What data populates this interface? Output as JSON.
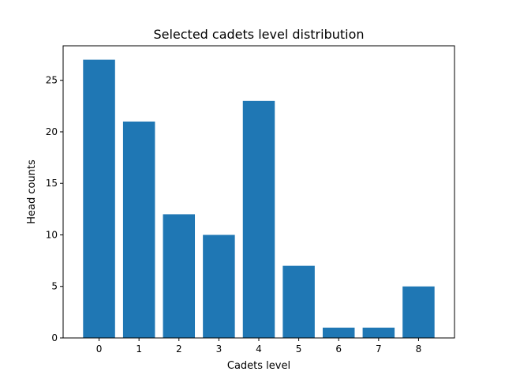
{
  "chart_data": {
    "type": "bar",
    "title": "Selected cadets level distribution",
    "xlabel": "Cadets level",
    "ylabel": "Head counts",
    "categories": [
      "0",
      "1",
      "2",
      "3",
      "4",
      "5",
      "6",
      "7",
      "8"
    ],
    "values": [
      27,
      21,
      12,
      10,
      23,
      7,
      1,
      1,
      5
    ],
    "xlim": [
      -0.9,
      8.9
    ],
    "ylim": [
      0,
      28.35
    ],
    "yticks": [
      0,
      5,
      10,
      15,
      20,
      25
    ],
    "bar_color": "#1f77b4",
    "grid": false,
    "legend": "none"
  }
}
